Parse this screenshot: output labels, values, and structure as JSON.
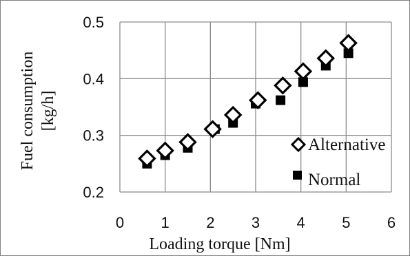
{
  "chart_data": {
    "type": "scatter",
    "title": "",
    "xlabel": "Loading torque [Nm]",
    "ylabel_lines": [
      "Fuel consumption",
      "[kg/h]"
    ],
    "xlim": [
      0,
      6
    ],
    "ylim": [
      0.2,
      0.5
    ],
    "x_ticks": [
      "0",
      "1",
      "2",
      "3",
      "4",
      "5",
      "6"
    ],
    "y_ticks": [
      "0.2",
      "0.3",
      "0.4",
      "0.5"
    ],
    "grid": true,
    "legend_position": "bottom-right",
    "series": [
      {
        "name": "Alternative",
        "marker": "open-diamond",
        "color": "#000000",
        "points": [
          {
            "x": 0.6,
            "y": 0.259
          },
          {
            "x": 1.0,
            "y": 0.273
          },
          {
            "x": 1.5,
            "y": 0.288
          },
          {
            "x": 2.05,
            "y": 0.311
          },
          {
            "x": 2.5,
            "y": 0.336
          },
          {
            "x": 3.05,
            "y": 0.362
          },
          {
            "x": 3.6,
            "y": 0.388
          },
          {
            "x": 4.05,
            "y": 0.413
          },
          {
            "x": 4.55,
            "y": 0.436
          },
          {
            "x": 5.05,
            "y": 0.463
          }
        ]
      },
      {
        "name": "Normal",
        "marker": "filled-square",
        "color": "#000000",
        "points": [
          {
            "x": 0.6,
            "y": 0.25
          },
          {
            "x": 1.0,
            "y": 0.265
          },
          {
            "x": 1.5,
            "y": 0.278
          },
          {
            "x": 2.1,
            "y": 0.311
          },
          {
            "x": 2.5,
            "y": 0.322
          },
          {
            "x": 3.0,
            "y": 0.356
          },
          {
            "x": 3.55,
            "y": 0.362
          },
          {
            "x": 4.05,
            "y": 0.394
          },
          {
            "x": 4.55,
            "y": 0.423
          },
          {
            "x": 5.05,
            "y": 0.445
          }
        ]
      }
    ]
  }
}
